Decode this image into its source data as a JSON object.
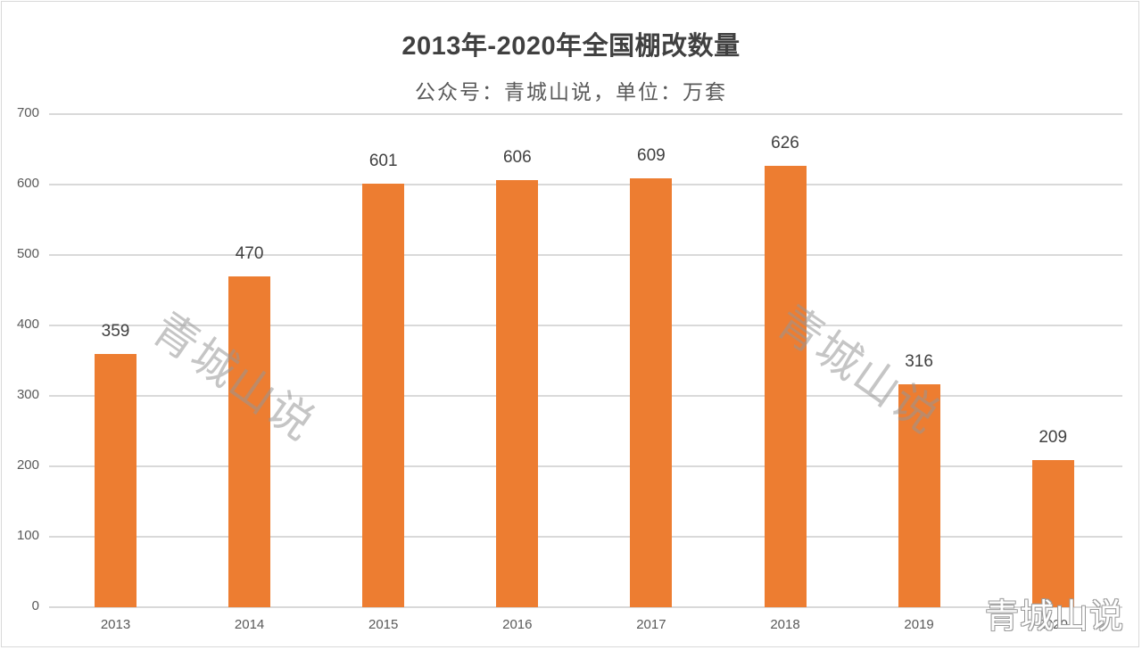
{
  "chart_data": {
    "type": "bar",
    "title": "2013年-2020年全国棚改数量",
    "subtitle": "公众号：青城山说，单位：万套",
    "xlabel": "",
    "ylabel": "",
    "categories": [
      "2013",
      "2014",
      "2015",
      "2016",
      "2017",
      "2018",
      "2019",
      "2020"
    ],
    "values": [
      359,
      470,
      601,
      606,
      609,
      626,
      316,
      209
    ],
    "ylim": [
      0,
      700
    ],
    "yticks": [
      "0",
      "100",
      "200",
      "300",
      "400",
      "500",
      "600",
      "700"
    ],
    "grid": true,
    "legend": null,
    "data_labels": true,
    "bar_color": "#ED7D31"
  },
  "watermarks": {
    "diagonal_1": "青城山说",
    "diagonal_2": "青城山说",
    "corner": "青城山说"
  },
  "colors": {
    "bar": "#ED7D31",
    "grid": "#D9D9D9",
    "text": "#404040",
    "axis_text": "#595959"
  }
}
